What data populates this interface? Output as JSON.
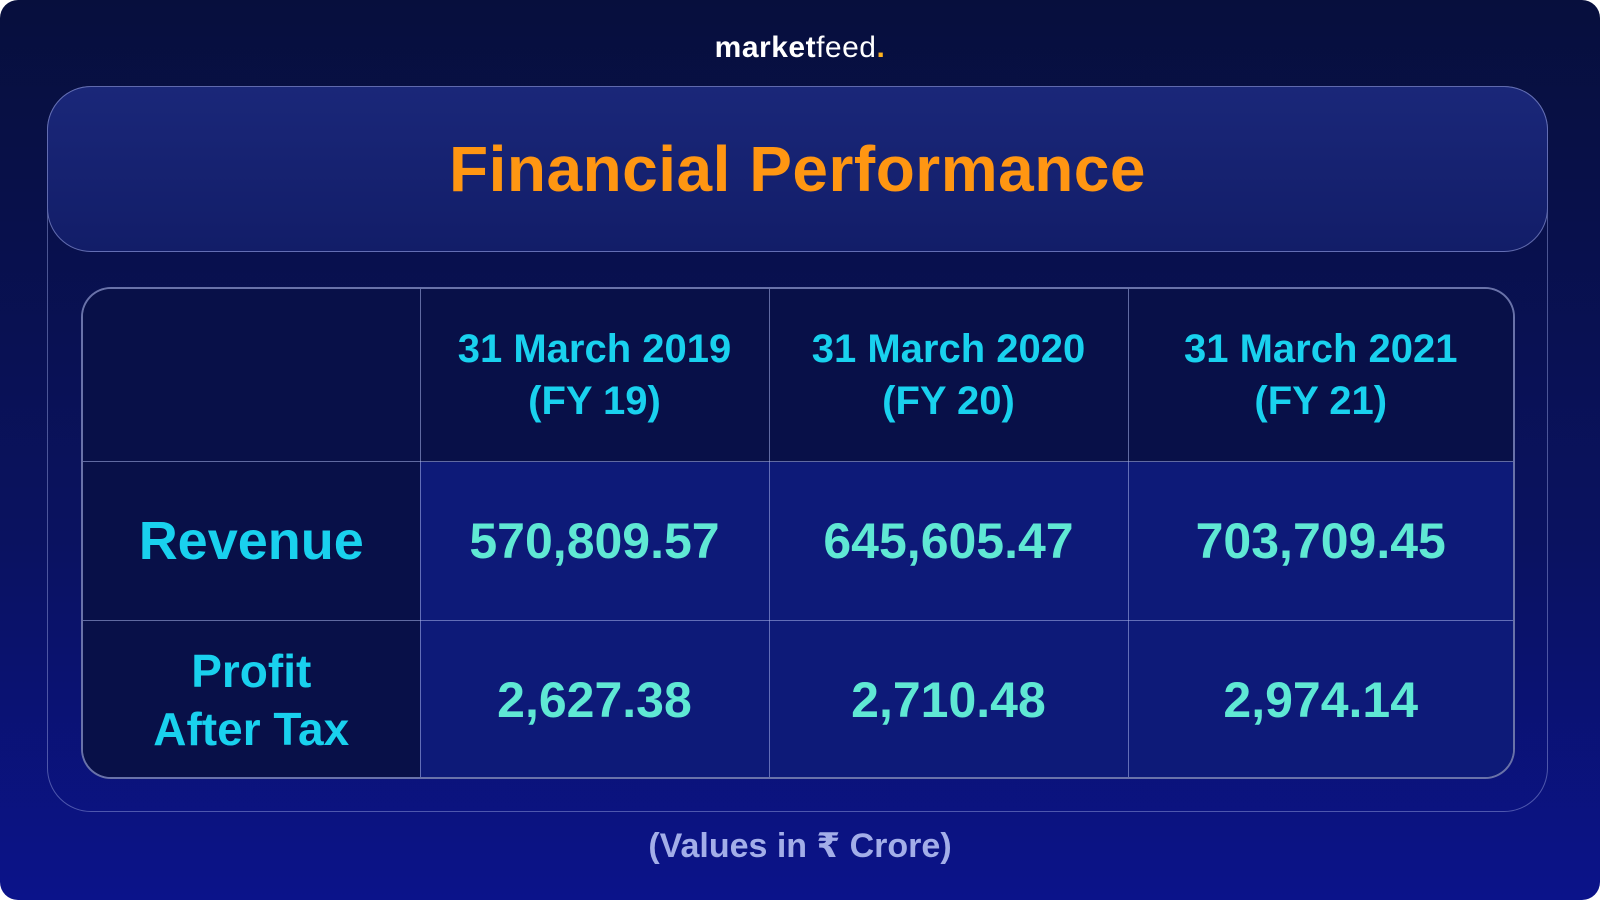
{
  "brand": {
    "part1": "market",
    "part2": "feed",
    "dot": ".",
    "dot_color": "#ffb21d"
  },
  "title": "Financial Performance",
  "title_color": "#ff9612",
  "table": {
    "columns": [
      {
        "line1": "31 March 2019",
        "line2": "(FY 19)"
      },
      {
        "line1": "31 March 2020",
        "line2": "(FY 20)"
      },
      {
        "line1": "31 March 2021",
        "line2": "(FY 21)"
      }
    ],
    "rows": [
      {
        "label_line1": "Revenue",
        "label_line2": "",
        "values": [
          "570,809.57",
          "645,605.47",
          "703,709.45"
        ]
      },
      {
        "label_line1": "Profit",
        "label_line2": "After Tax",
        "values": [
          "2,627.38",
          "2,710.48",
          "2,974.14"
        ]
      }
    ]
  },
  "footnote": "(Values in ₹ Crore)",
  "colors": {
    "background_top": "#070f3d",
    "background_bottom": "#0b138a",
    "header_text": "#19d1ee",
    "value_text": "#5fe8d4"
  }
}
